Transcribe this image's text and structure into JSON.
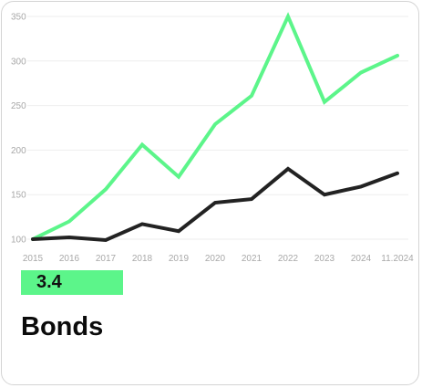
{
  "card": {
    "value": "3.4",
    "title": "Bonds"
  },
  "colors": {
    "accent_series": "#5cf58a",
    "dark_series": "#222222",
    "badge": "#5cf58a",
    "grid": "#eeeeee",
    "tick": "#a8a8a8"
  },
  "chart_data": {
    "type": "line",
    "categories": [
      "2015",
      "2016",
      "2017",
      "2018",
      "2019",
      "2020",
      "2021",
      "2022",
      "2023",
      "2024",
      "11.2024"
    ],
    "series": [
      {
        "color": "#5cf58a",
        "values": [
          100,
          120,
          156,
          206,
          170,
          229,
          261,
          350,
          254,
          287,
          306
        ]
      },
      {
        "color": "#222222",
        "values": [
          100,
          102,
          99,
          117,
          109,
          141,
          145,
          179,
          150,
          159,
          174
        ]
      }
    ],
    "y_ticks": [
      100,
      150,
      200,
      250,
      300,
      350
    ],
    "ylim": [
      100,
      350
    ],
    "grid": true,
    "legend": "none"
  }
}
